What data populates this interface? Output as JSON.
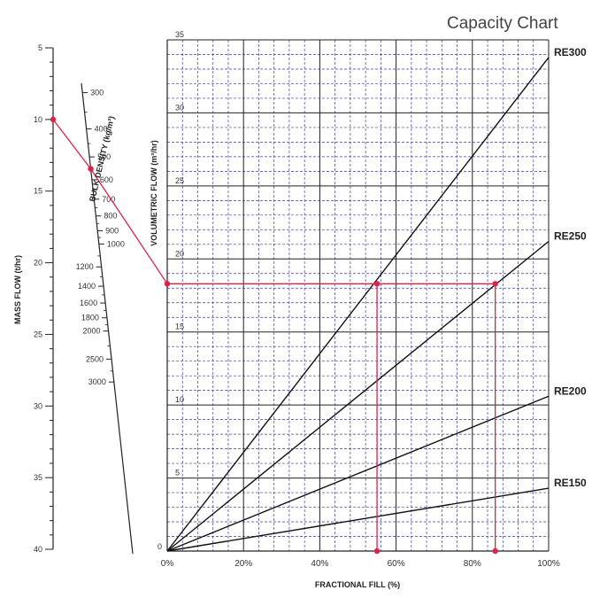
{
  "title": "Capacity Chart",
  "chart_data": {
    "type": "line",
    "title": "Capacity Chart",
    "xlabel": "FRACTIONAL FILL (%)",
    "ylabel": "VOLUMETRIC FLOW (m³/hr)",
    "x_ticks": [
      "0%",
      "20%",
      "40%",
      "60%",
      "80%",
      "100%"
    ],
    "y_ticks": [
      "0",
      "5",
      "10",
      "15",
      "20",
      "25",
      "30",
      "35"
    ],
    "xlim": [
      0,
      100
    ],
    "ylim": [
      0,
      35
    ],
    "grid": true,
    "series": [
      {
        "name": "RE300",
        "x": [
          0,
          100
        ],
        "y": [
          0,
          33.8
        ]
      },
      {
        "name": "RE250",
        "x": [
          0,
          100
        ],
        "y": [
          0,
          21.2
        ]
      },
      {
        "name": "RE200",
        "x": [
          0,
          100
        ],
        "y": [
          0,
          10.6
        ]
      },
      {
        "name": "RE150",
        "x": [
          0,
          100
        ],
        "y": [
          0,
          4.3
        ]
      }
    ],
    "mass_flow_scale": {
      "label": "MASS FLOW (t/hr)",
      "ticks": [
        "5",
        "10",
        "15",
        "20",
        "25",
        "30",
        "35",
        "40"
      ]
    },
    "bulk_density_scale": {
      "label": "BULK DENSITY (kg/m³)",
      "ticks": [
        "300",
        "400",
        "500",
        "600",
        "700",
        "800",
        "900",
        "1000",
        "1200",
        "1400",
        "1600",
        "1800",
        "2000",
        "2500",
        "3000"
      ]
    },
    "example": {
      "mass_flow": 10,
      "bulk_density": 550,
      "volumetric_flow": 18.3,
      "fill_points": [
        55,
        86
      ]
    },
    "colors": {
      "grid": "#3b3b9a",
      "grid_major": "#222222",
      "series": "#111111",
      "example": "#e0204a"
    }
  }
}
